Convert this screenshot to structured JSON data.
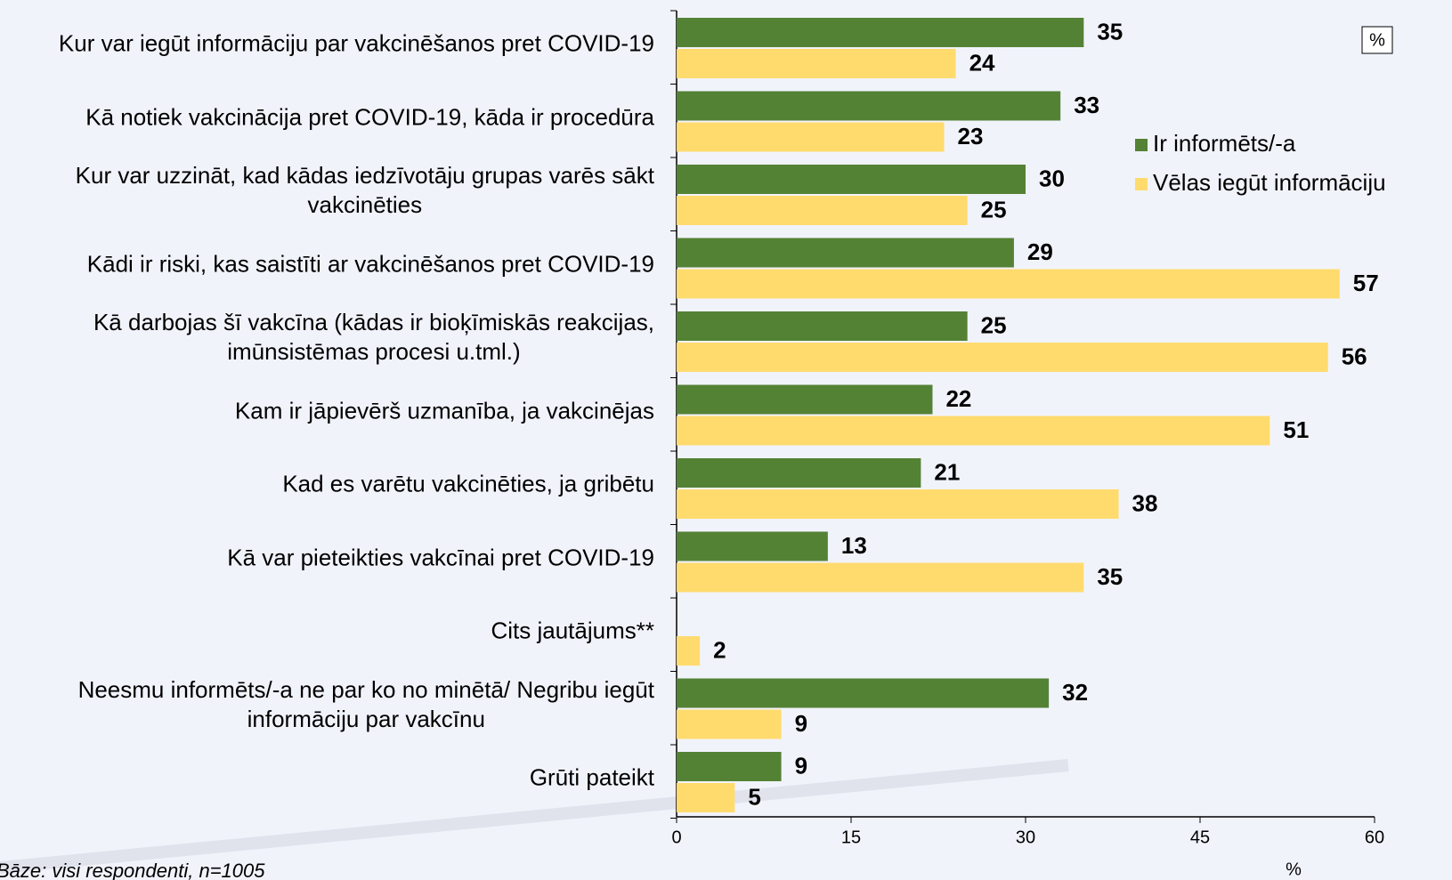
{
  "chart_data": {
    "type": "bar",
    "orientation": "horizontal",
    "categories": [
      "Kur var iegūt informāciju par vakcinēšanos pret COVID-19",
      "Kā notiek vakcinācija pret COVID-19, kāda ir procedūra",
      "Kur var uzzināt, kad kādas iedzīvotāju grupas varēs sākt\nvakcinēties",
      "Kādi ir riski, kas saistīti ar vakcinēšanos pret COVID-19",
      "Kā darbojas šī vakcīna (kādas ir bioķīmiskās reakcijas,\nimūnsistēmas procesi u.tml.)",
      "Kam ir jāpievērš uzmanība, ja vakcinējas",
      "Kad es varētu vakcinēties, ja gribētu",
      "Kā var pieteikties vakcīnai pret COVID-19",
      "Cits jautājums**",
      "Neesmu informēts/-a ne par ko no minētā/ Negribu iegūt\ninformāciju par vakcīnu",
      "Grūti pateikt"
    ],
    "series": [
      {
        "name": "Ir informēts/-a",
        "color": "#548235",
        "values": [
          35,
          33,
          30,
          29,
          25,
          22,
          21,
          13,
          null,
          32,
          9
        ]
      },
      {
        "name": "Vēlas iegūt informāciju",
        "color": "#ffdb6e",
        "values": [
          24,
          23,
          25,
          57,
          56,
          51,
          38,
          35,
          2,
          9,
          5
        ]
      }
    ],
    "xlim": [
      0,
      60
    ],
    "xticks": [
      0,
      15,
      30,
      45,
      60
    ],
    "x_label": "%",
    "badge": "%",
    "note": "Bāze: visi respondenti, n=1005"
  }
}
